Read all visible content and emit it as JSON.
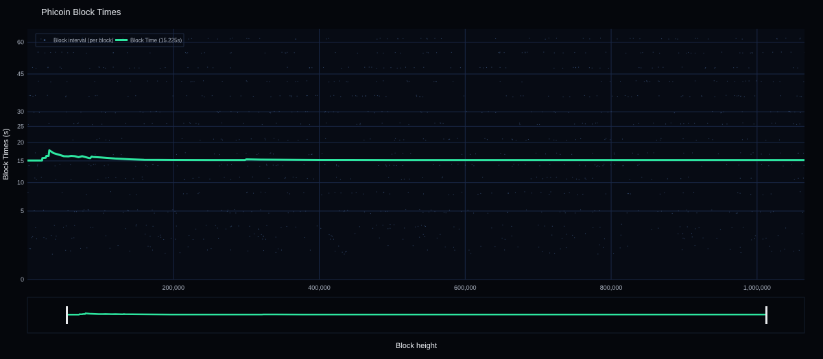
{
  "chart_data": {
    "type": "line",
    "title": "Phicoin Block Times",
    "xlabel": "Block height",
    "ylabel": "Block Times (s)",
    "xlim": [
      0,
      1065000
    ],
    "ylim": [
      0,
      67
    ],
    "y_scale": "sqrt",
    "x_ticks": [
      {
        "value": 200000,
        "label": "200,000"
      },
      {
        "value": 400000,
        "label": "400,000"
      },
      {
        "value": 600000,
        "label": "600,000"
      },
      {
        "value": 800000,
        "label": "800,000"
      },
      {
        "value": 1000000,
        "label": "1,000,000"
      }
    ],
    "y_ticks": [
      {
        "value": 0,
        "label": "0"
      },
      {
        "value": 5,
        "label": "5"
      },
      {
        "value": 10,
        "label": "10"
      },
      {
        "value": 15,
        "label": "15"
      },
      {
        "value": 20,
        "label": "20"
      },
      {
        "value": 25,
        "label": "25"
      },
      {
        "value": 30,
        "label": "30"
      },
      {
        "value": 45,
        "label": "45"
      },
      {
        "value": 60,
        "label": "60"
      }
    ],
    "grid": true,
    "legend_position": "top-left",
    "series": [
      {
        "name": "Block interval (per block)",
        "kind": "scatter",
        "color": "#3f5b86"
      },
      {
        "name": "Block Time (15.225s)",
        "kind": "line",
        "color": "#2ee6a0",
        "x": [
          0,
          20000,
          20500,
          25000,
          26000,
          29000,
          30000,
          36000,
          50000,
          56000,
          60000,
          65000,
          70000,
          75000,
          80000,
          85000,
          86000,
          88000,
          90000,
          100000,
          120000,
          140000,
          160000,
          200000,
          250000,
          298000,
          300000,
          320000,
          360000,
          400000,
          500000,
          600000,
          700000,
          800000,
          900000,
          1000000,
          1065000
        ],
        "y": [
          15.1,
          15.1,
          15.7,
          15.8,
          16.3,
          16.3,
          17.8,
          17.0,
          16.2,
          16.15,
          16.3,
          16.2,
          15.95,
          16.2,
          15.95,
          15.7,
          15.7,
          16.1,
          16.0,
          15.9,
          15.6,
          15.4,
          15.28,
          15.23,
          15.21,
          15.22,
          15.38,
          15.32,
          15.26,
          15.23,
          15.22,
          15.22,
          15.22,
          15.22,
          15.22,
          15.22,
          15.22
        ]
      }
    ]
  },
  "colors": {
    "background": "#05070c",
    "plot_background": "#070b14",
    "grid": "#1a2847",
    "axis_text": "#a9b1bf",
    "title_text": "#e6e9ee",
    "accent": "#2ee6a0",
    "points": "#3f5b86",
    "range_handle": "#e8eaed"
  }
}
